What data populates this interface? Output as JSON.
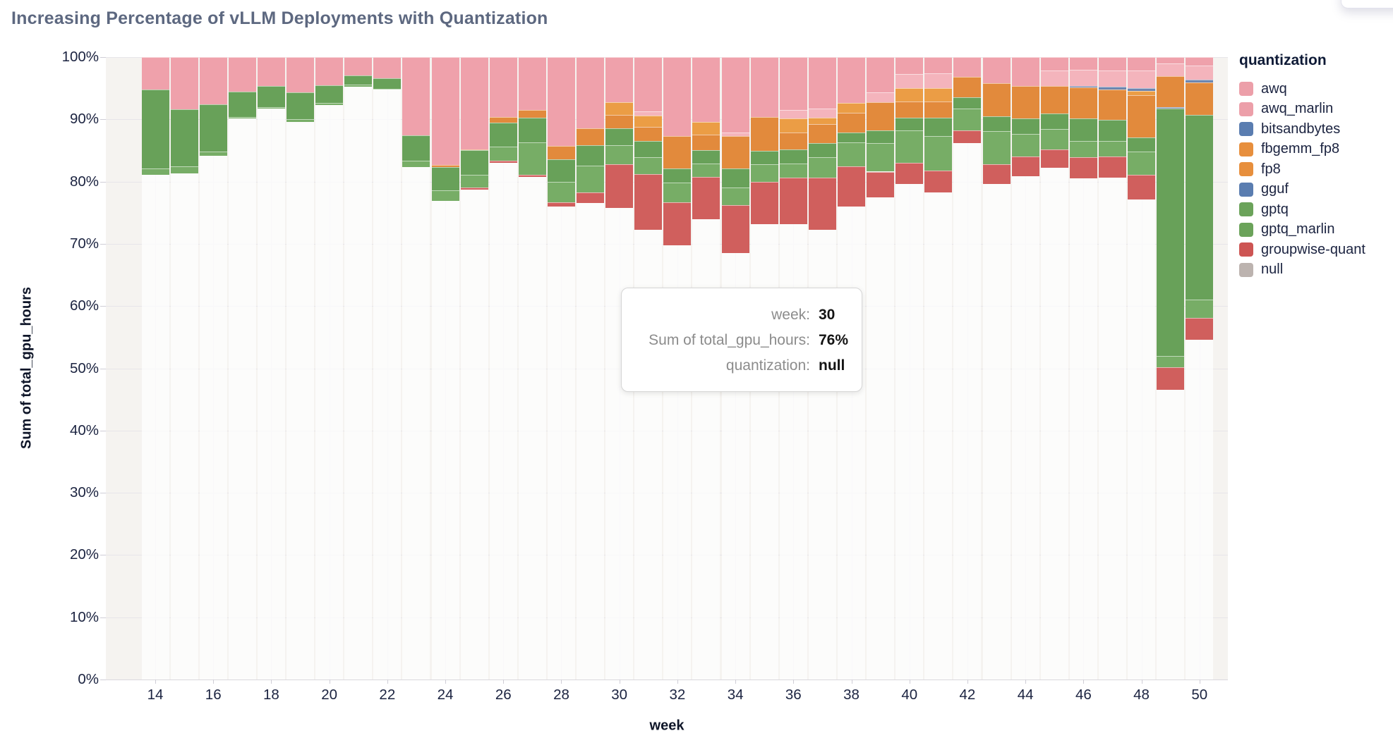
{
  "title": "Increasing Percentage of vLLM Deployments with Quantization",
  "chart_data": {
    "type": "bar",
    "stacked": true,
    "normalized_percent": true,
    "title": "Increasing Percentage of vLLM Deployments with Quantization",
    "xlabel": "week",
    "ylabel": "Sum of total_gpu_hours",
    "ylim": [
      0,
      100
    ],
    "y_tick_labels": [
      "0%",
      "10%",
      "20%",
      "30%",
      "40%",
      "50%",
      "60%",
      "70%",
      "80%",
      "90%",
      "100%"
    ],
    "x_tick_labels": [
      14,
      16,
      18,
      20,
      22,
      24,
      26,
      28,
      30,
      32,
      34,
      36,
      38,
      40,
      42,
      44,
      46,
      48,
      50
    ],
    "categories": [
      14,
      15,
      16,
      17,
      18,
      19,
      20,
      21,
      22,
      23,
      24,
      25,
      26,
      27,
      28,
      29,
      30,
      31,
      32,
      33,
      34,
      35,
      36,
      37,
      38,
      39,
      40,
      41,
      42,
      43,
      44,
      45,
      46,
      47,
      48,
      49,
      50
    ],
    "grid": true,
    "legend_position": "right",
    "stack_order_bottom_to_top": [
      "null",
      "groupwise-quant",
      "gptq_marlin",
      "gptq",
      "gguf",
      "fp8",
      "fbgemm_fp8",
      "bitsandbytes",
      "awq_marlin",
      "awq"
    ],
    "series": [
      {
        "name": "awq",
        "color": "#efa1ab",
        "values": [
          5.2,
          8.4,
          7.6,
          5.5,
          4.6,
          5.7,
          4.5,
          2.9,
          3.4,
          12.6,
          17.3,
          14.8,
          9.6,
          8.5,
          14.3,
          11.4,
          7.2,
          8.7,
          12.7,
          10.4,
          12.1,
          9.6,
          8.5,
          8.3,
          7.4,
          5.7,
          2.7,
          2.6,
          3.2,
          4.2,
          4.6,
          2.2,
          2.0,
          2.1,
          2.1,
          1.0,
          1.4
        ]
      },
      {
        "name": "awq_marlin",
        "color": "#f4b4bc",
        "values": [
          0,
          0,
          0,
          0,
          0,
          0,
          0,
          0,
          0,
          0,
          0,
          0,
          0,
          0,
          0,
          0,
          0,
          0.7,
          0,
          0,
          0.6,
          0,
          1.3,
          1.4,
          0,
          1.6,
          2.3,
          2.4,
          0,
          0,
          0,
          2.4,
          2.6,
          2.7,
          2.9,
          2.0,
          2.2
        ]
      },
      {
        "name": "bitsandbytes",
        "color": "#6d86b0",
        "values": [
          0,
          0,
          0,
          0,
          0,
          0,
          0,
          0,
          0,
          0,
          0,
          0,
          0,
          0,
          0,
          0,
          0,
          0,
          0,
          0,
          0,
          0,
          0,
          0,
          0,
          0,
          0,
          0,
          0,
          0,
          0,
          0,
          0.3,
          0.4,
          0.4,
          0,
          0.5
        ]
      },
      {
        "name": "fbgemm_fp8",
        "color": "#eb9d45",
        "values": [
          0,
          0,
          0,
          0,
          0,
          0,
          0,
          0,
          0,
          0,
          0,
          0,
          0,
          0,
          0,
          0,
          2.1,
          1.8,
          0,
          2.1,
          0,
          0,
          2.3,
          1.1,
          1.6,
          0,
          2.1,
          2.1,
          0,
          0,
          0,
          0,
          0,
          0,
          0.7,
          0,
          0
        ]
      },
      {
        "name": "fp8",
        "color": "#e28a3c",
        "values": [
          0,
          0,
          0,
          0,
          0,
          0,
          0,
          0,
          0,
          0,
          0.4,
          0.2,
          0.9,
          1.2,
          2.1,
          2.8,
          2.1,
          2.3,
          5.2,
          2.5,
          5.2,
          5.5,
          2.7,
          3.0,
          3.1,
          4.5,
          2.6,
          2.6,
          3.3,
          5.3,
          5.3,
          4.5,
          5.0,
          4.9,
          6.8,
          5.0,
          5.2
        ]
      },
      {
        "name": "gguf",
        "color": "#7d93b8",
        "values": [
          0,
          0,
          0,
          0,
          0,
          0,
          0,
          0,
          0,
          0,
          0,
          0,
          0,
          0,
          0,
          0,
          0,
          0,
          0,
          0,
          0,
          0,
          0,
          0,
          0,
          0,
          0,
          0,
          0,
          0,
          0,
          0,
          0,
          0,
          0,
          0.3,
          0
        ]
      },
      {
        "name": "gptq",
        "color": "#68a159",
        "values": [
          12.7,
          9.2,
          7.6,
          4.1,
          3.4,
          4.3,
          2.9,
          1.5,
          1.7,
          4.0,
          3.7,
          3.9,
          3.9,
          4.0,
          3.6,
          3.2,
          2.7,
          2.6,
          2.3,
          2.1,
          3.1,
          2.1,
          2.3,
          2.3,
          1.6,
          2.0,
          2.1,
          3.0,
          1.8,
          2.4,
          2.4,
          2.5,
          3.6,
          3.4,
          2.3,
          39.7,
          29.7
        ]
      },
      {
        "name": "gptq_marlin",
        "color": "#77ad66",
        "values": [
          1.0,
          1.1,
          0.7,
          0.3,
          0.3,
          0.4,
          0.3,
          0.3,
          0.1,
          1.1,
          1.7,
          2.1,
          2.3,
          5.2,
          3.3,
          4.3,
          3.1,
          2.7,
          3.1,
          2.2,
          2.8,
          2.8,
          2.3,
          3.3,
          3.8,
          4.6,
          5.2,
          5.5,
          3.5,
          5.3,
          3.7,
          3.2,
          2.6,
          2.5,
          3.7,
          1.8,
          2.9
        ]
      },
      {
        "name": "groupwise-quant",
        "color": "#d05f5d",
        "values": [
          0,
          0,
          0,
          0,
          0,
          0,
          0,
          0,
          0,
          0,
          0,
          0.3,
          0.3,
          0.4,
          0.7,
          1.7,
          7.0,
          9.0,
          6.9,
          6.8,
          7.7,
          6.8,
          7.4,
          8.4,
          6.5,
          4.1,
          3.4,
          3.5,
          2.0,
          3.2,
          3.1,
          3.0,
          3.4,
          3.4,
          4.0,
          3.6,
          3.5
        ]
      },
      {
        "name": "null",
        "color": "rgba(255,255,255,0.72)",
        "values": [
          81.1,
          81.3,
          84.1,
          90.1,
          91.7,
          89.6,
          92.3,
          95.3,
          94.8,
          82.3,
          76.9,
          78.7,
          83.0,
          80.7,
          76.0,
          76.6,
          75.8,
          72.2,
          69.8,
          73.9,
          68.5,
          73.2,
          73.2,
          72.2,
          76.0,
          77.5,
          79.6,
          78.3,
          86.2,
          79.6,
          80.9,
          82.2,
          80.5,
          80.6,
          77.1,
          46.6,
          54.6
        ]
      }
    ]
  },
  "legend": {
    "title": "quantization",
    "items": [
      {
        "label": "awq",
        "color": "#ec9fa9"
      },
      {
        "label": "awq_marlin",
        "color": "#ec9fa9"
      },
      {
        "label": "bitsandbytes",
        "color": "#5a7db0"
      },
      {
        "label": "fbgemm_fp8",
        "color": "#e78f3d"
      },
      {
        "label": "fp8",
        "color": "#e78f3d"
      },
      {
        "label": "gguf",
        "color": "#5a7db0"
      },
      {
        "label": "gptq",
        "color": "#6ba35a"
      },
      {
        "label": "gptq_marlin",
        "color": "#6ba35a"
      },
      {
        "label": "groupwise-quant",
        "color": "#cd5553"
      },
      {
        "label": "null",
        "color": "#bcb3af"
      }
    ]
  },
  "tooltip": {
    "rows": [
      {
        "label": "week:",
        "value": "30"
      },
      {
        "label": "Sum of total_gpu_hours:",
        "value": "76%"
      },
      {
        "label": "quantization:",
        "value": "null"
      }
    ]
  }
}
